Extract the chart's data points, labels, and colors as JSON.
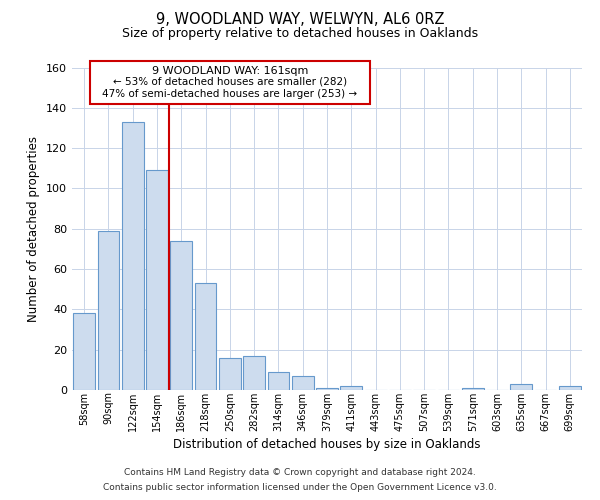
{
  "title": "9, WOODLAND WAY, WELWYN, AL6 0RZ",
  "subtitle": "Size of property relative to detached houses in Oaklands",
  "xlabel": "Distribution of detached houses by size in Oaklands",
  "ylabel": "Number of detached properties",
  "bar_labels": [
    "58sqm",
    "90sqm",
    "122sqm",
    "154sqm",
    "186sqm",
    "218sqm",
    "250sqm",
    "282sqm",
    "314sqm",
    "346sqm",
    "379sqm",
    "411sqm",
    "443sqm",
    "475sqm",
    "507sqm",
    "539sqm",
    "571sqm",
    "603sqm",
    "635sqm",
    "667sqm",
    "699sqm"
  ],
  "bar_values": [
    38,
    79,
    133,
    109,
    74,
    53,
    16,
    17,
    9,
    7,
    1,
    2,
    0,
    0,
    0,
    0,
    1,
    0,
    3,
    0,
    2
  ],
  "bar_color": "#cddcee",
  "bar_edge_color": "#6699cc",
  "vline_x": 3.5,
  "vline_color": "#cc0000",
  "annotation_title": "9 WOODLAND WAY: 161sqm",
  "annotation_line1": "← 53% of detached houses are smaller (282)",
  "annotation_line2": "47% of semi-detached houses are larger (253) →",
  "annotation_box_color": "#ffffff",
  "annotation_box_edge": "#cc0000",
  "ylim": [
    0,
    160
  ],
  "yticks": [
    0,
    20,
    40,
    60,
    80,
    100,
    120,
    140,
    160
  ],
  "footer_line1": "Contains HM Land Registry data © Crown copyright and database right 2024.",
  "footer_line2": "Contains public sector information licensed under the Open Government Licence v3.0.",
  "bg_color": "#ffffff",
  "grid_color": "#c8d4e8"
}
